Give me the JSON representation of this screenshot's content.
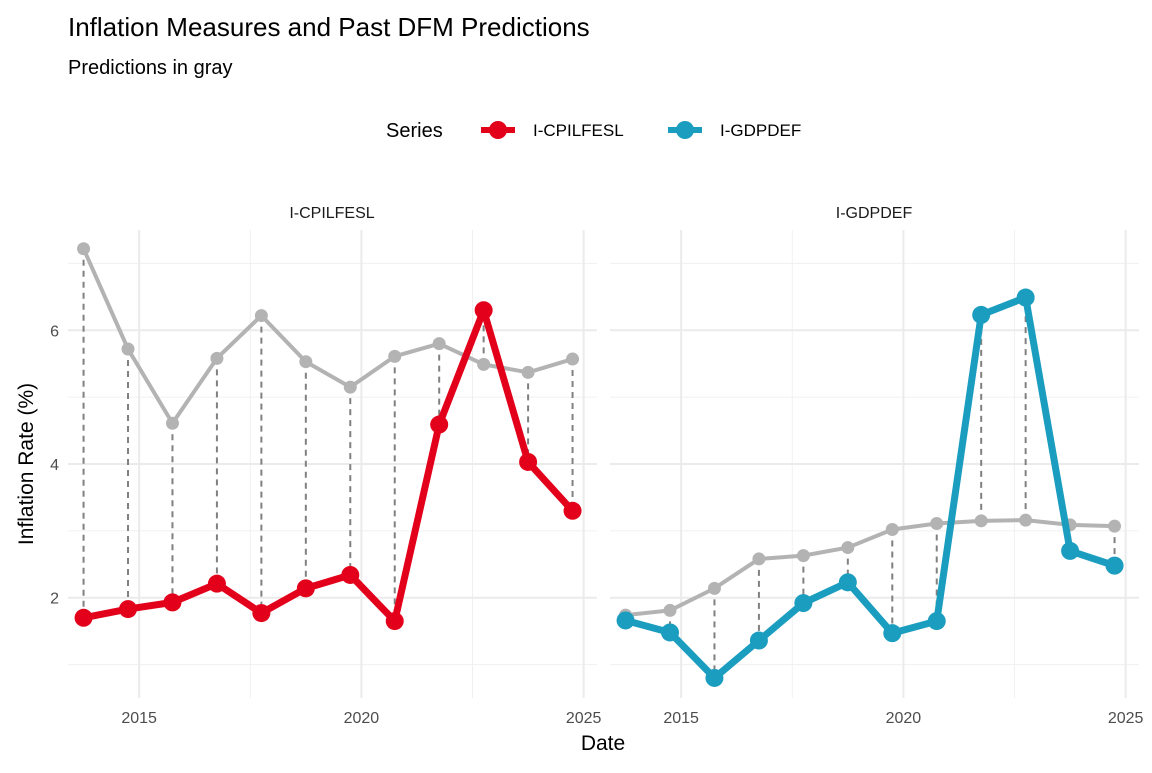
{
  "title": "Inflation Measures and Past DFM Predictions",
  "subtitle": "Predictions in gray",
  "legend": {
    "title": "Series",
    "placement": "top",
    "items": [
      {
        "label": "I-CPILFESL",
        "color": "#e3001b"
      },
      {
        "label": "I-GDPDEF",
        "color": "#1b9dc0"
      }
    ]
  },
  "xlabel": "Date",
  "ylabel": "Inflation Rate (%)",
  "prediction_color": "#b3b3b3",
  "connector_color": "#808080",
  "chart_data": {
    "type": "line",
    "xlim": [
      2013.4,
      2025.3
    ],
    "ylim": [
      0.5,
      7.5
    ],
    "x_ticks": [
      2015,
      2020,
      2025
    ],
    "x_tick_labels": [
      "2015",
      "2020",
      "2025"
    ],
    "y_ticks": [
      2,
      4,
      6
    ],
    "y_tick_labels": [
      "2",
      "4",
      "6"
    ],
    "grid": true,
    "shared_y_axis": true,
    "x": [
      2013.75,
      2014.75,
      2015.75,
      2016.75,
      2017.75,
      2018.75,
      2019.75,
      2020.75,
      2021.75,
      2022.75,
      2023.75,
      2024.75
    ],
    "panels": [
      {
        "name": "I-CPILFESL",
        "color": "#e3001b",
        "actual": [
          1.7,
          1.83,
          1.93,
          2.21,
          1.77,
          2.14,
          2.34,
          1.65,
          4.59,
          6.3,
          4.03,
          3.3
        ],
        "predicted": [
          7.22,
          5.72,
          4.61,
          5.58,
          6.22,
          5.53,
          5.15,
          5.61,
          5.8,
          5.49,
          5.37,
          5.57
        ]
      },
      {
        "name": "I-GDPDEF",
        "color": "#1b9dc0",
        "actual": [
          1.66,
          1.48,
          0.8,
          1.36,
          1.92,
          2.23,
          1.47,
          1.65,
          6.23,
          6.49,
          2.7,
          2.48
        ],
        "predicted": [
          1.74,
          1.81,
          2.14,
          2.58,
          2.63,
          2.75,
          3.02,
          3.11,
          3.15,
          3.16,
          3.09,
          3.07
        ]
      }
    ]
  }
}
